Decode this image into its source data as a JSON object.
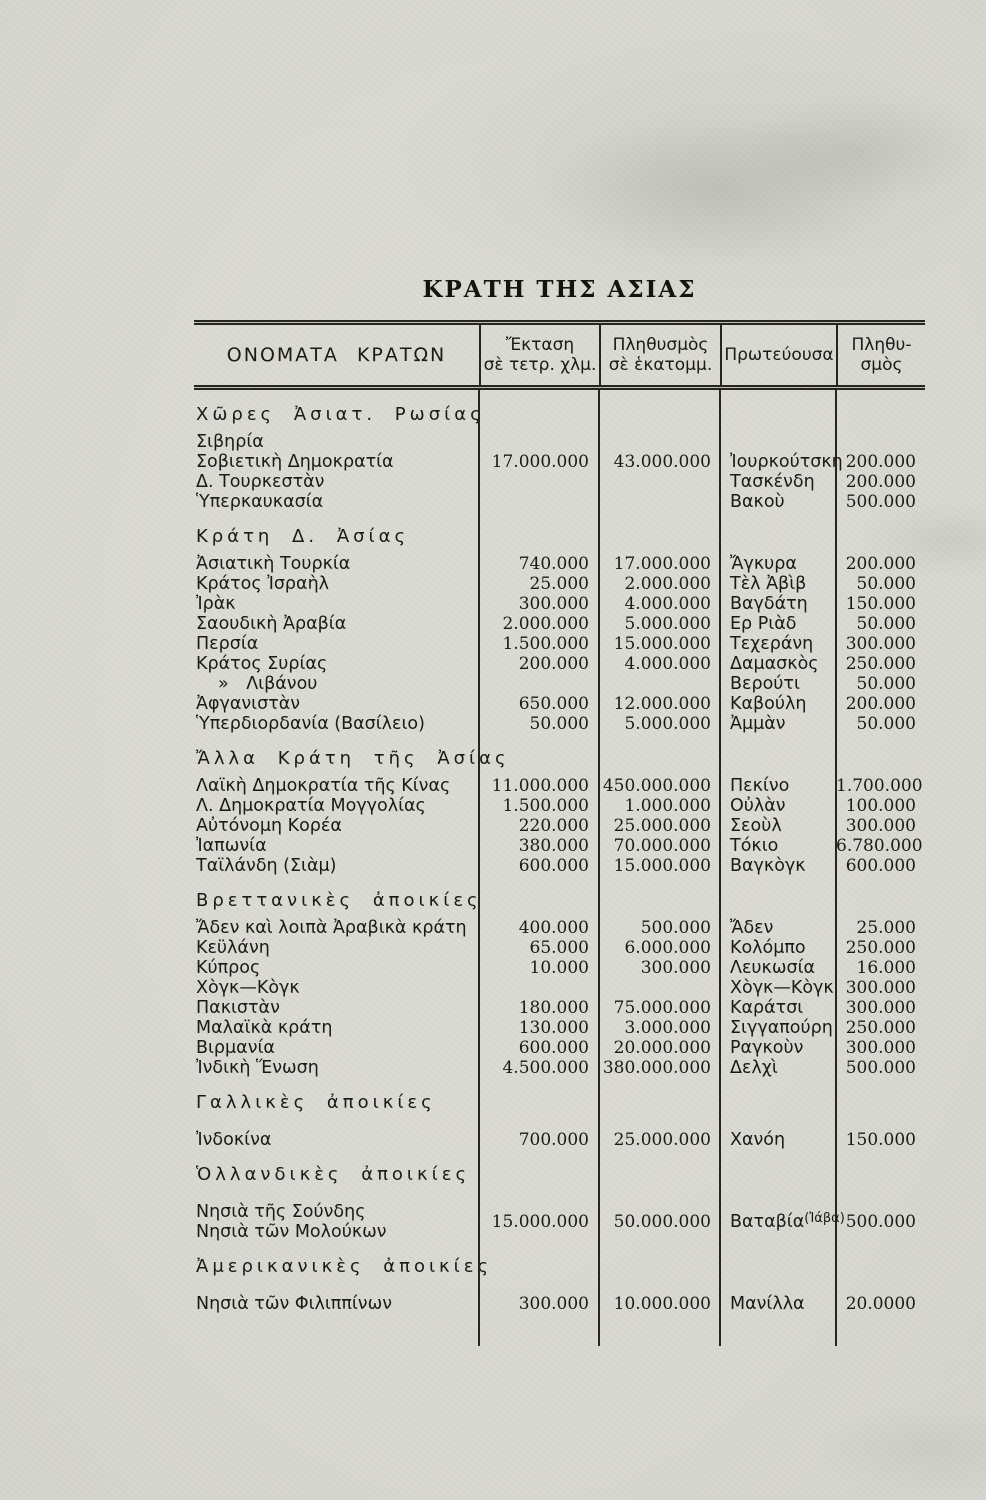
{
  "page": {
    "title": "ΚΡΑΤΗ ΤΗΣ ΑΣΙΑΣ"
  },
  "table": {
    "columns": {
      "names": "ΟΝΟΜΑΤΑ ΚΡΑΤΩΝ",
      "area_line1": "Ἔκταση",
      "area_line2": "σὲ τετρ. χλμ.",
      "pop_line1": "Πληθυσμὸς",
      "pop_line2": "σὲ ἑκατομμ.",
      "capital": "Πρωτεύουσα",
      "cappop_line1": "Πληθυ-",
      "cappop_line2": "σμὸς"
    },
    "sections": [
      {
        "heading": "Χῶρες Ἀσιατ. Ρωσίας",
        "rows": [
          {
            "name": "Σιβηρία",
            "area": "",
            "pop": "",
            "capital": "",
            "cap_pop": ""
          },
          {
            "name": "Σοβιετικὴ Δημοκρατία",
            "area": "17.000.000",
            "pop": "43.000.000",
            "capital": "Ἰουρκούτσκη",
            "cap_pop": "200.000"
          },
          {
            "name": "Δ. Τουρκεστὰν",
            "area": "",
            "pop": "",
            "capital": "Τασκένδη",
            "cap_pop": "200.000"
          },
          {
            "name": "Ὑπερκαυκασία",
            "area": "",
            "pop": "",
            "capital": "Βακοὺ",
            "cap_pop": "500.000"
          }
        ]
      },
      {
        "heading": "Κράτη Δ. Ἀσίας",
        "rows": [
          {
            "name": "Ἀσιατικὴ Τουρκία",
            "area": "740.000",
            "pop": "17.000.000",
            "capital": "Ἄγκυρα",
            "cap_pop": "200.000"
          },
          {
            "name": "Κράτος Ἰσραὴλ",
            "area": "25.000",
            "pop": "2.000.000",
            "capital": "Τὲλ Ἀβὶβ",
            "cap_pop": "50.000"
          },
          {
            "name": "Ἰρὰκ",
            "area": "300.000",
            "pop": "4.000.000",
            "capital": "Βαγδάτη",
            "cap_pop": "150.000"
          },
          {
            "name": "Σαουδικὴ Ἀραβία",
            "area": "2.000.000",
            "pop": "5.000.000",
            "capital": "Ερ Ριὰδ",
            "cap_pop": "50.000"
          },
          {
            "name": "Περσία",
            "area": "1.500.000",
            "pop": "15.000.000",
            "capital": "Τεχεράνη",
            "cap_pop": "300.000"
          },
          {
            "name": "Κράτος Συρίας",
            "area": "200.000",
            "pop": "4.000.000",
            "capital": "Δαμασκὸς",
            "cap_pop": "250.000"
          },
          {
            "name": "» Λιβάνου",
            "indent": true,
            "area": "",
            "pop": "",
            "capital": "Βερούτι",
            "cap_pop": "50.000"
          },
          {
            "name": "Ἀφγανιστὰν",
            "area": "650.000",
            "pop": "12.000.000",
            "capital": "Καβούλη",
            "cap_pop": "200.000"
          },
          {
            "name": "Ὑπερδιορδανία (Βασίλειο)",
            "area": "50.000",
            "pop": "5.000.000",
            "capital": "Ἀμμὰν",
            "cap_pop": "50.000"
          }
        ]
      },
      {
        "heading": "Ἄλλα Κράτη τῆς Ἀσίας",
        "rows": [
          {
            "name": "Λαϊκὴ Δημοκρατία τῆς Κίνας",
            "area": "11.000.000",
            "pop": "450.000.000",
            "capital": "Πεκίνο",
            "cap_pop": "1.700.000"
          },
          {
            "name": "Λ. Δημοκρατία Μογγολίας",
            "area": "1.500.000",
            "pop": "1.000.000",
            "capital": "Οὐλὰν",
            "cap_pop": "100.000"
          },
          {
            "name": "Αὐτόνομη Κορέα",
            "area": "220.000",
            "pop": "25.000.000",
            "capital": "Σεοὺλ",
            "cap_pop": "300.000"
          },
          {
            "name": "Ἰαπωνία",
            "area": "380.000",
            "pop": "70.000.000",
            "capital": "Τόκιο",
            "cap_pop": "6.780.000"
          },
          {
            "name": "Ταϊλάνδη (Σιὰμ)",
            "area": "600.000",
            "pop": "15.000.000",
            "capital": "Βαγκὸγκ",
            "cap_pop": "600.000"
          }
        ]
      },
      {
        "heading": "Βρεττανικὲς ἀποικίες",
        "rows": [
          {
            "name": "Ἄδεν καὶ λοιπὰ Ἀραβικὰ κράτη",
            "area": "400.000",
            "pop": "500.000",
            "capital": "Ἄδεν",
            "cap_pop": "25.000"
          },
          {
            "name": "Κεϋλάνη",
            "area": "65.000",
            "pop": "6.000.000",
            "capital": "Κολόμπο",
            "cap_pop": "250.000"
          },
          {
            "name": "Κύπρος",
            "area": "10.000",
            "pop": "300.000",
            "capital": "Λευκωσία",
            "cap_pop": "16.000"
          },
          {
            "name": "Χὸγκ—Κὸγκ",
            "area": "",
            "pop": "",
            "capital": "Χὸγκ—Κὸγκ",
            "cap_pop": "300.000"
          },
          {
            "name": "Πακιστὰν",
            "area": "180.000",
            "pop": "75.000.000",
            "capital": "Καράτσι",
            "cap_pop": "300.000"
          },
          {
            "name": "Μαλαϊκὰ κράτη",
            "area": "130.000",
            "pop": "3.000.000",
            "capital": "Σιγγαπούρη",
            "cap_pop": "250.000"
          },
          {
            "name": "Βιρμανία",
            "area": "600.000",
            "pop": "20.000.000",
            "capital": "Ραγκοὺν",
            "cap_pop": "300.000"
          },
          {
            "name": "Ἰνδικὴ Ἕνωση",
            "area": "4.500.000",
            "pop": "380.000.000",
            "capital": "Δελχὶ",
            "cap_pop": "500.000"
          }
        ]
      },
      {
        "heading": "Γαλλικὲς ἀποικίες",
        "gap_rows": true,
        "rows": [
          {
            "name": "Ἰνδοκίνα",
            "area": "700.000",
            "pop": "25.000.000",
            "capital": "Χανόη",
            "cap_pop": "150.000"
          }
        ]
      },
      {
        "heading": "Ὁλλανδικὲς ἀποικίες",
        "gap_rows": true,
        "rows": [
          {
            "name": "Νησιὰ τῆς Σούνδης",
            "name2": "Νησιὰ τῶν Μολούκων",
            "area": "15.000.000",
            "pop": "50.000.000",
            "capital": "Βαταβία",
            "capital_note": "(Ἰάβα)",
            "cap_pop": "500.000"
          }
        ]
      },
      {
        "heading": "Ἀμερικανικὲς ἀποικίες",
        "gap_rows": true,
        "rows": [
          {
            "name": "Νησιὰ τῶν Φιλιππίνων",
            "area": "300.000",
            "pop": "10.000.000",
            "capital": "Μανίλλα",
            "cap_pop": "20.0000"
          }
        ]
      }
    ]
  }
}
